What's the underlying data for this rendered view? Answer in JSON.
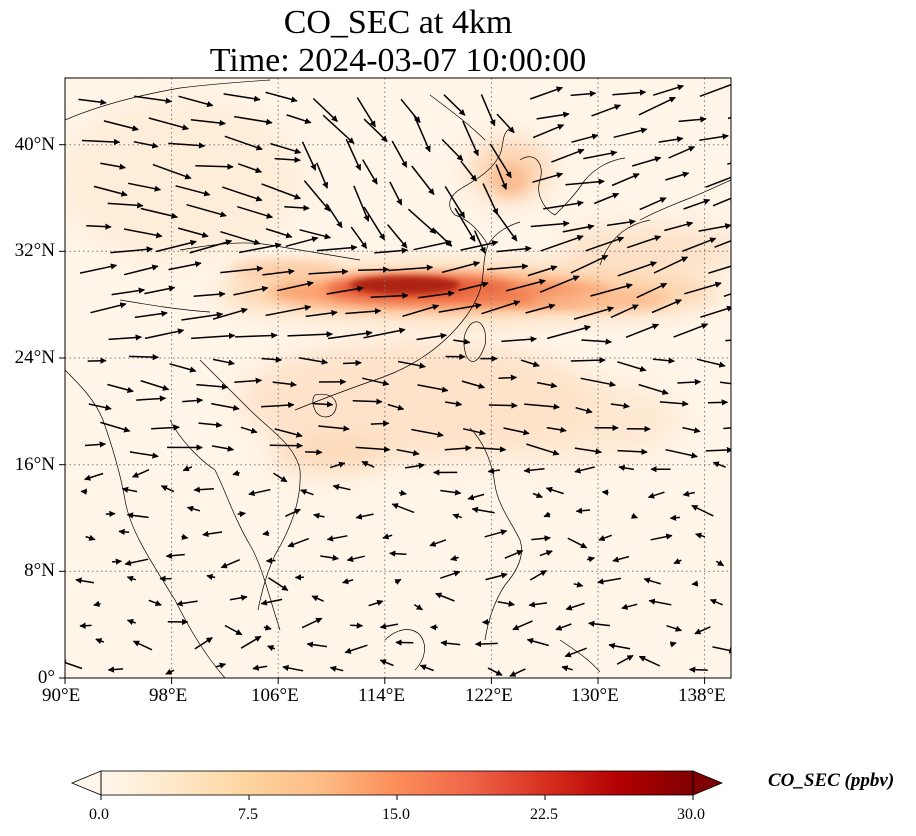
{
  "title": {
    "line1": "CO_SEC at 4km",
    "line2": "Time: 2024-03-07 10:00:00"
  },
  "axes": {
    "lon_labels": [
      "90°E",
      "98°E",
      "106°E",
      "114°E",
      "122°E",
      "130°E",
      "138°E"
    ],
    "lat_labels": [
      "0°",
      "8°N",
      "16°N",
      "24°N",
      "32°N",
      "40°N"
    ],
    "lon_range": [
      90,
      140
    ],
    "lat_range": [
      0,
      45
    ],
    "gridlines": "dotted"
  },
  "colorbar": {
    "label": "CO_SEC (ppbv)",
    "ticks": [
      "0.0",
      "7.5",
      "15.0",
      "22.5",
      "30.0"
    ],
    "range": [
      0,
      30
    ],
    "colormap": "OrRd",
    "extend": "both",
    "colors": [
      "#fff7ec",
      "#fee8c8",
      "#fdd49e",
      "#fdbb84",
      "#fc8d59",
      "#ef6548",
      "#d7301f",
      "#b30000",
      "#7f0000"
    ]
  },
  "map": {
    "background": "#fff5e8",
    "plume_color": "#b30000"
  }
}
